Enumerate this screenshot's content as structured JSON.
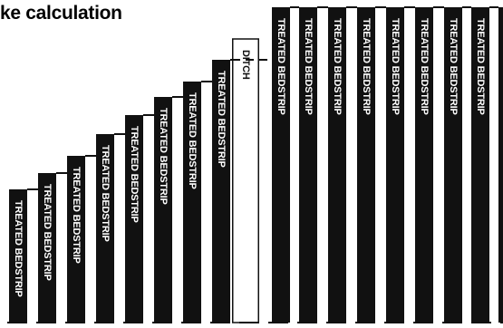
{
  "title": "ke calculation",
  "strip_label": "TREATED BEDSTRIP",
  "ditch_label": "DITCH",
  "colors": {
    "strip": "#111111",
    "ditch_fill": "#ffffff",
    "line": "#111111",
    "strip_text": "#ffffff",
    "ditch_text": "#111111"
  },
  "strips": [
    {
      "kind": "strip",
      "label": "TREATED BEDSTRIP"
    },
    {
      "kind": "strip",
      "label": "TREATED BEDSTRIP"
    },
    {
      "kind": "strip",
      "label": "TREATED BEDSTRIP"
    },
    {
      "kind": "strip",
      "label": "TREATED BEDSTRIP"
    },
    {
      "kind": "strip",
      "label": "TREATED BEDSTRIP"
    },
    {
      "kind": "strip",
      "label": "TREATED BEDSTRIP"
    },
    {
      "kind": "strip",
      "label": "TREATED BEDSTRIP"
    },
    {
      "kind": "strip",
      "label": "TREATED BEDSTRIP"
    },
    {
      "kind": "ditch",
      "label": "DITCH"
    },
    {
      "kind": "strip",
      "label": "TREATED BEDSTRIP"
    },
    {
      "kind": "strip",
      "label": "TREATED BEDSTRIP"
    },
    {
      "kind": "strip",
      "label": "TREATED BEDSTRIP"
    },
    {
      "kind": "strip",
      "label": "TREATED BEDSTRIP"
    },
    {
      "kind": "strip",
      "label": "TREATED BEDSTRIP"
    },
    {
      "kind": "strip",
      "label": "TREATED BEDSTRIP"
    },
    {
      "kind": "strip",
      "label": "TREATED BEDSTRIP"
    },
    {
      "kind": "strip",
      "label": "TREATED BEDSTRIP"
    },
    {
      "kind": "strip",
      "label": "TREATED BEDSTRIP"
    }
  ]
}
